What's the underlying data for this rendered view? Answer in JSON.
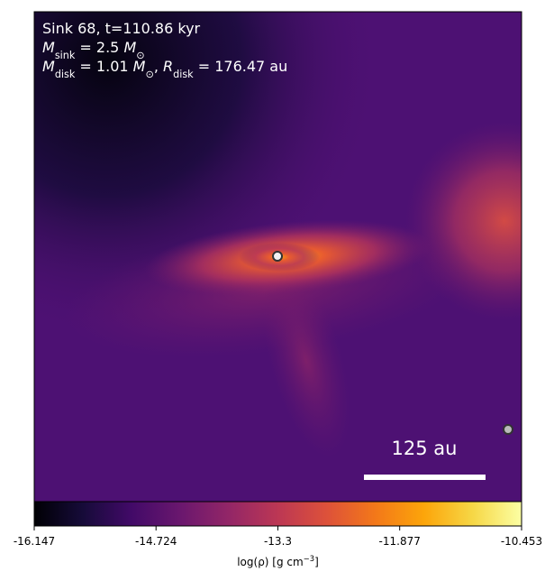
{
  "chart_data": {
    "type": "image",
    "annotation_lines": [
      [
        {
          "text": "Sink 68, t=110.86 kyr"
        }
      ],
      [
        {
          "text": "M",
          "italic": true
        },
        {
          "text": "sink",
          "sub": true
        },
        {
          "text": " = 2.5 "
        },
        {
          "text": "M",
          "italic": true
        },
        {
          "text": "⊙",
          "sub": true
        }
      ],
      [
        {
          "text": "M",
          "italic": true
        },
        {
          "text": "disk",
          "sub": true
        },
        {
          "text": " = 1.01 "
        },
        {
          "text": "M",
          "italic": true
        },
        {
          "text": "⊙",
          "sub": true
        },
        {
          "text": ", "
        },
        {
          "text": "R",
          "italic": true
        },
        {
          "text": "disk",
          "sub": true
        },
        {
          "text": " = 176.47 au"
        }
      ]
    ],
    "scale_bar_label": "125 au",
    "colorbar": {
      "label": [
        {
          "text": "log(ρ) [g cm"
        },
        {
          "text": "−3",
          "sup": true
        },
        {
          "text": "]"
        }
      ],
      "colormap": "inferno",
      "lim": [
        -16.147,
        -10.453
      ],
      "ticks": [
        -16.147,
        -14.724,
        -13.3,
        -11.877,
        -10.453
      ]
    }
  }
}
